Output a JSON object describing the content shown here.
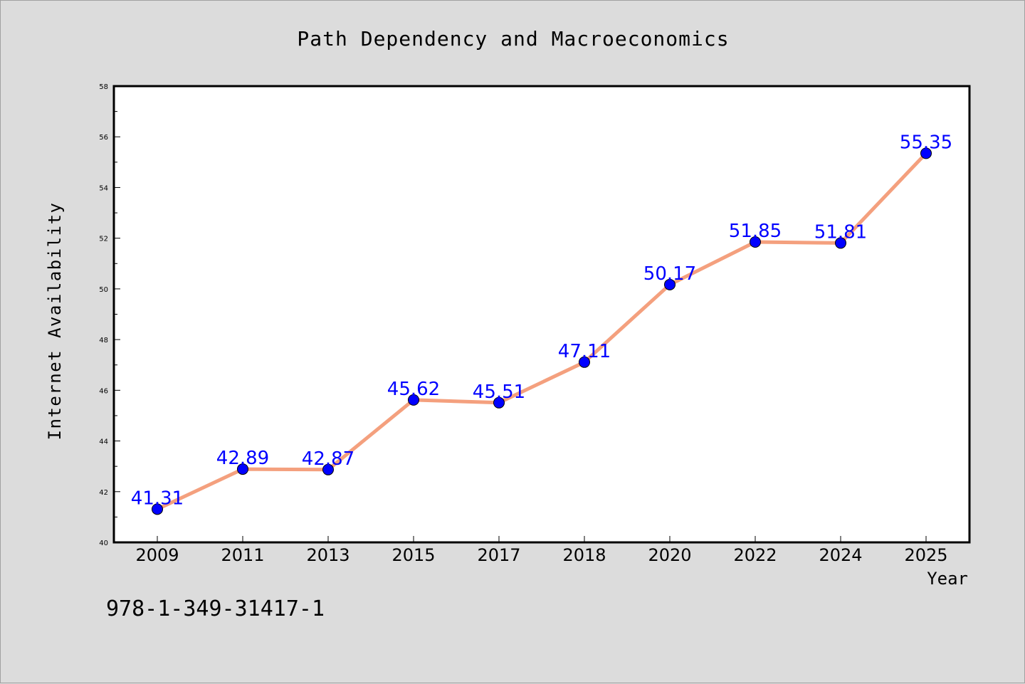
{
  "chart_data": {
    "type": "line",
    "title": "Path Dependency and Macroeconomics",
    "xlabel": "Year",
    "ylabel": "Internet Availability",
    "categories": [
      "2009",
      "2011",
      "2013",
      "2015",
      "2017",
      "2018",
      "2020",
      "2022",
      "2024",
      "2025"
    ],
    "series": [
      {
        "values": [
          41.31,
          42.89,
          42.87,
          45.62,
          45.51,
          47.11,
          50.17,
          51.85,
          51.81,
          55.35
        ],
        "data_labels": [
          "41.31",
          "42.89",
          "42.87",
          "45.62",
          "45.51",
          "47.11",
          "50.17",
          "51.85",
          "51.81",
          "55.35"
        ],
        "line_color": "#f4a07e",
        "marker_color": "#0000ff"
      }
    ],
    "ylim": [
      40,
      58
    ],
    "y_ticks": [
      "40",
      "42",
      "44",
      "46",
      "48",
      "50",
      "52",
      "54",
      "56",
      "58"
    ],
    "grid": false,
    "plot_background": "#ffffff",
    "label_color": "#0000ff"
  },
  "footer_text": "978-1-349-31417-1"
}
